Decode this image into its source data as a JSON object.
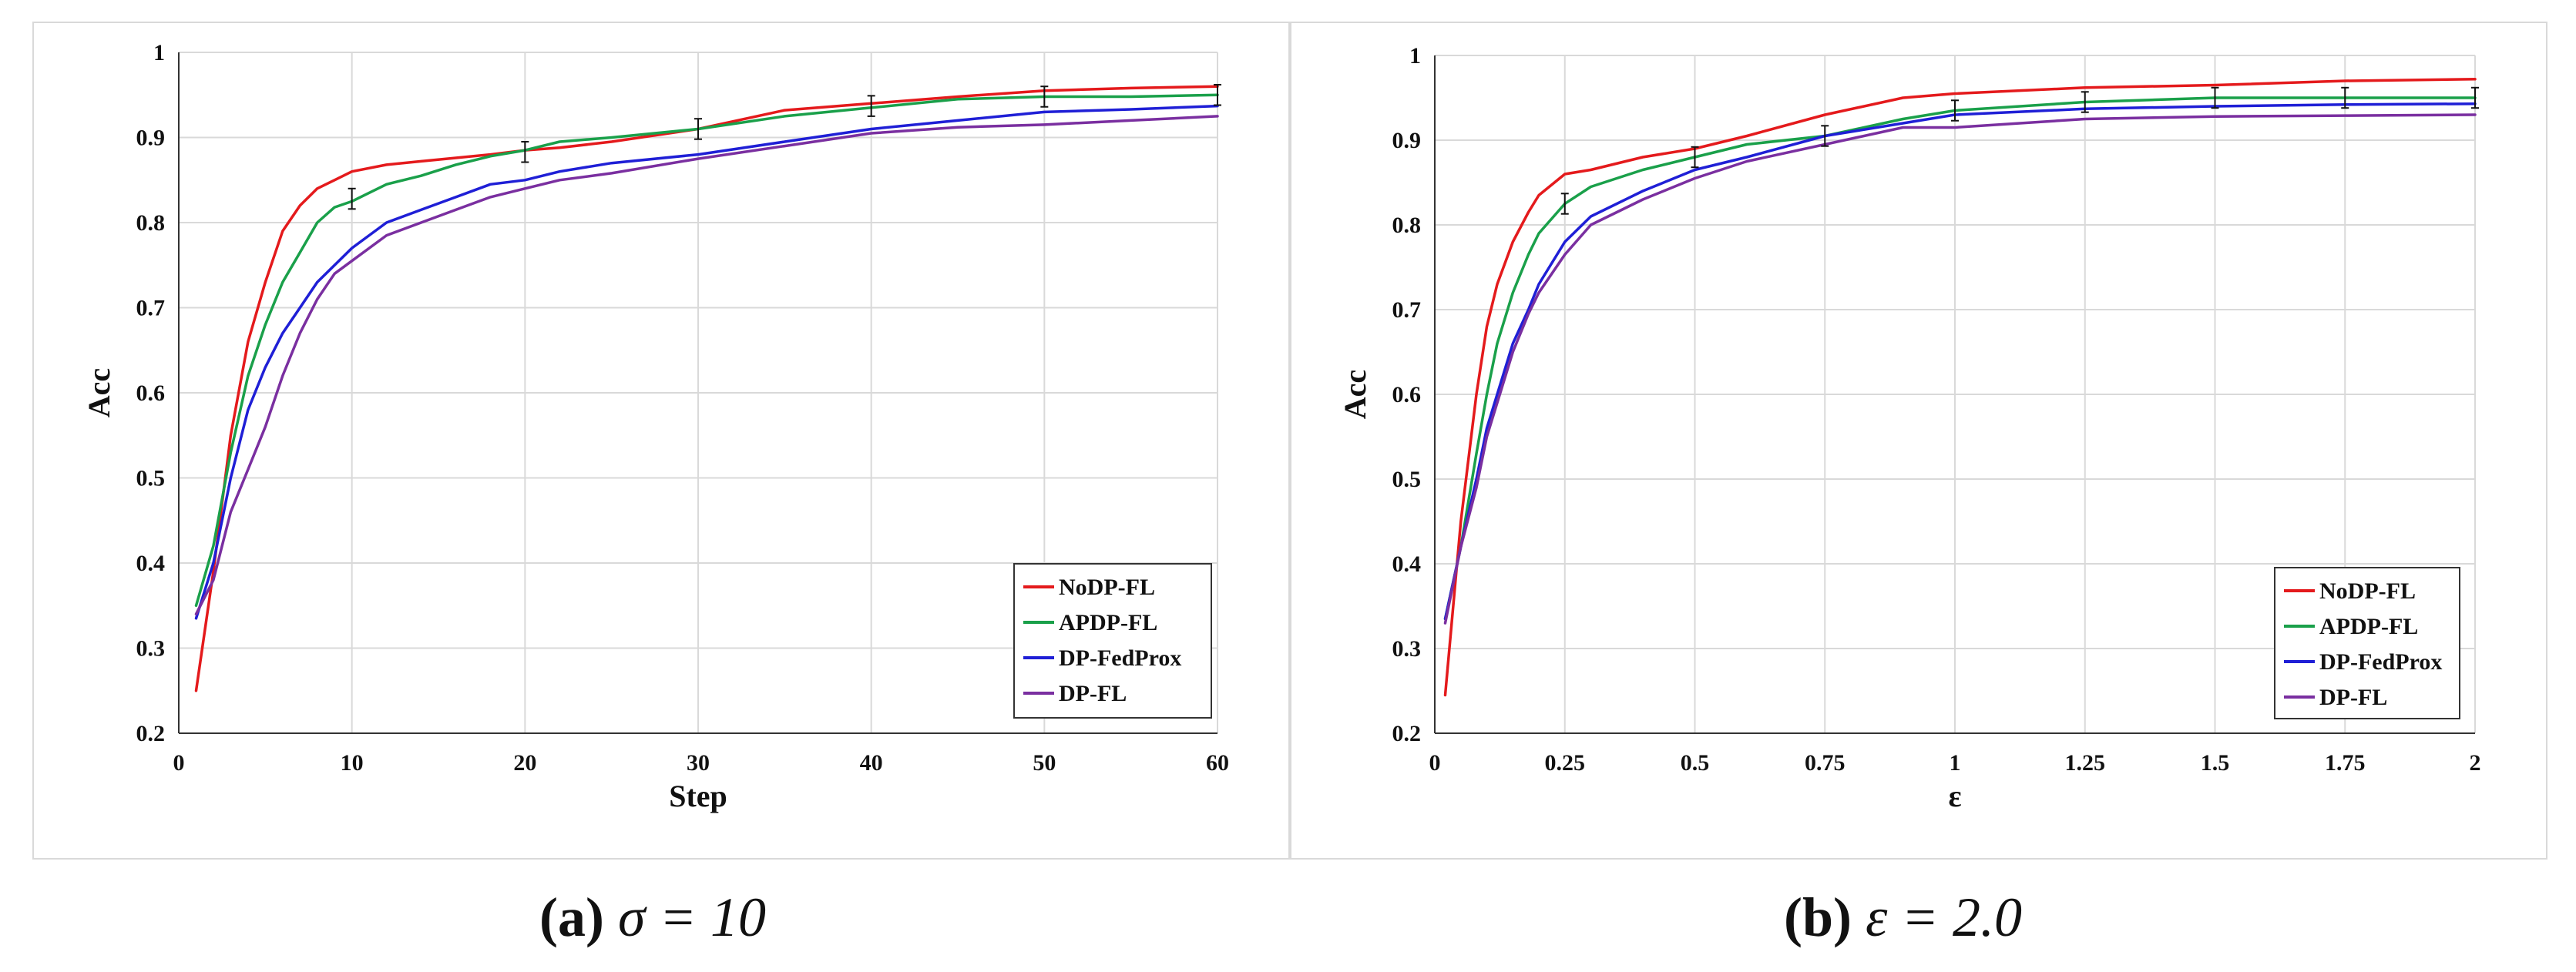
{
  "colors": {
    "NoDP-FL": "#e41a1c",
    "APDP-FL": "#1aa04a",
    "DP-FedProx": "#1f1fd6",
    "DP-FL": "#7a2fa0",
    "grid": "#d9d9d9",
    "frame": "#d9d9d9"
  },
  "captions": [
    {
      "label": "(a)",
      "text": "σ = 10"
    },
    {
      "label": "(b)",
      "text": "ε = 2.0"
    }
  ],
  "chart_data": [
    {
      "type": "line",
      "title": "",
      "xlabel": "Step",
      "ylabel": "Acc",
      "xlim": [
        0,
        60
      ],
      "ylim": [
        0.2,
        1.0
      ],
      "xticks": [
        0,
        10,
        20,
        30,
        40,
        50,
        60
      ],
      "xtick_labels": [
        "0",
        "10",
        "20",
        "30",
        "40",
        "50",
        "60"
      ],
      "yticks": [
        0.2,
        0.3,
        0.4,
        0.5,
        0.6,
        0.7,
        0.8,
        0.9,
        1.0
      ],
      "ytick_labels": [
        "0.2",
        "0.3",
        "0.4",
        "0.5",
        "0.6",
        "0.7",
        "0.8",
        "0.9",
        "1"
      ],
      "grid": true,
      "legend_position": "bottom-right",
      "x": [
        1,
        2,
        3,
        4,
        5,
        6,
        7,
        8,
        9,
        10,
        12,
        14,
        16,
        18,
        20,
        22,
        25,
        30,
        35,
        40,
        45,
        50,
        55,
        60
      ],
      "series": [
        {
          "name": "NoDP-FL",
          "values": [
            0.25,
            0.39,
            0.55,
            0.66,
            0.73,
            0.79,
            0.82,
            0.84,
            0.85,
            0.86,
            0.868,
            0.872,
            0.876,
            0.88,
            0.885,
            0.888,
            0.895,
            0.91,
            0.932,
            0.94,
            0.948,
            0.955,
            0.958,
            0.96
          ]
        },
        {
          "name": "APDP-FL",
          "values": [
            0.35,
            0.42,
            0.53,
            0.62,
            0.68,
            0.73,
            0.765,
            0.8,
            0.818,
            0.825,
            0.845,
            0.855,
            0.868,
            0.878,
            0.885,
            0.895,
            0.9,
            0.91,
            0.925,
            0.935,
            0.945,
            0.948,
            0.948,
            0.95
          ]
        },
        {
          "name": "DP-FedProx",
          "values": [
            0.335,
            0.4,
            0.5,
            0.58,
            0.63,
            0.67,
            0.7,
            0.73,
            0.75,
            0.77,
            0.8,
            0.815,
            0.83,
            0.845,
            0.85,
            0.86,
            0.87,
            0.88,
            0.895,
            0.91,
            0.92,
            0.93,
            0.933,
            0.937
          ]
        },
        {
          "name": "DP-FL",
          "values": [
            0.34,
            0.38,
            0.46,
            0.51,
            0.56,
            0.62,
            0.67,
            0.71,
            0.74,
            0.755,
            0.785,
            0.8,
            0.815,
            0.83,
            0.84,
            0.85,
            0.858,
            0.875,
            0.89,
            0.905,
            0.912,
            0.915,
            0.92,
            0.925
          ]
        }
      ],
      "error_bars": {
        "series": "APDP-FL",
        "x": [
          10,
          20,
          30,
          40,
          50,
          60
        ],
        "y": [
          0.828,
          0.883,
          0.91,
          0.937,
          0.948,
          0.95
        ],
        "err": 0.012
      }
    },
    {
      "type": "line",
      "title": "",
      "xlabel": "ε",
      "ylabel": "Acc",
      "xlim": [
        0,
        2
      ],
      "ylim": [
        0.2,
        1.0
      ],
      "xticks": [
        0,
        0.25,
        0.5,
        0.75,
        1,
        1.25,
        1.5,
        1.75,
        2
      ],
      "xtick_labels": [
        "0",
        "0.25",
        "0.5",
        "0.75",
        "1",
        "1.25",
        "1.5",
        "1.75",
        "2"
      ],
      "yticks": [
        0.2,
        0.3,
        0.4,
        0.5,
        0.6,
        0.7,
        0.8,
        0.9,
        1.0
      ],
      "ytick_labels": [
        "0.2",
        "0.3",
        "0.4",
        "0.5",
        "0.6",
        "0.7",
        "0.8",
        "0.9",
        "1"
      ],
      "grid": true,
      "legend_position": "bottom-right",
      "x": [
        0.02,
        0.05,
        0.08,
        0.1,
        0.12,
        0.15,
        0.18,
        0.2,
        0.25,
        0.3,
        0.4,
        0.5,
        0.6,
        0.75,
        0.9,
        1.0,
        1.25,
        1.5,
        1.75,
        2.0
      ],
      "series": [
        {
          "name": "NoDP-FL",
          "values": [
            0.245,
            0.45,
            0.6,
            0.68,
            0.73,
            0.78,
            0.815,
            0.835,
            0.86,
            0.865,
            0.88,
            0.89,
            0.905,
            0.93,
            0.95,
            0.955,
            0.962,
            0.965,
            0.97,
            0.972
          ]
        },
        {
          "name": "APDP-FL",
          "values": [
            0.335,
            0.42,
            0.53,
            0.6,
            0.66,
            0.72,
            0.765,
            0.79,
            0.825,
            0.845,
            0.865,
            0.88,
            0.895,
            0.905,
            0.925,
            0.935,
            0.945,
            0.95,
            0.95,
            0.95
          ]
        },
        {
          "name": "DP-FedProx",
          "values": [
            0.335,
            0.42,
            0.5,
            0.56,
            0.6,
            0.66,
            0.7,
            0.73,
            0.78,
            0.81,
            0.84,
            0.865,
            0.88,
            0.905,
            0.92,
            0.93,
            0.937,
            0.94,
            0.942,
            0.943
          ]
        },
        {
          "name": "DP-FL",
          "values": [
            0.33,
            0.42,
            0.49,
            0.55,
            0.59,
            0.65,
            0.695,
            0.72,
            0.765,
            0.8,
            0.83,
            0.855,
            0.875,
            0.895,
            0.915,
            0.915,
            0.925,
            0.928,
            0.929,
            0.93
          ]
        }
      ],
      "error_bars": {
        "series": "APDP-FL",
        "x": [
          0.25,
          0.5,
          0.75,
          1.0,
          1.25,
          1.5,
          1.75,
          2.0
        ],
        "y": [
          0.825,
          0.88,
          0.905,
          0.935,
          0.945,
          0.95,
          0.95,
          0.95
        ],
        "err": 0.012
      }
    }
  ]
}
